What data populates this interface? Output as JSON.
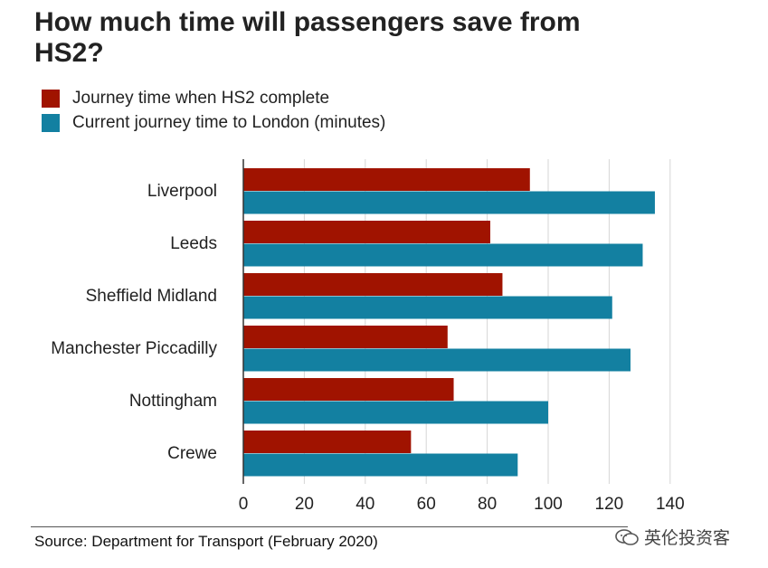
{
  "title": "How much time will passengers save from HS2?",
  "source": "Source: Department for Transport (February 2020)",
  "watermark": "英伦投资客",
  "chart_data": {
    "type": "bar",
    "orientation": "horizontal",
    "categories": [
      "Liverpool",
      "Leeds",
      "Sheffield Midland",
      "Manchester Piccadilly",
      "Nottingham",
      "Crewe"
    ],
    "series": [
      {
        "name": "Journey time when HS2 complete",
        "color": "#a01300",
        "values": [
          94,
          81,
          85,
          67,
          69,
          55
        ]
      },
      {
        "name": "Current journey time to London (minutes)",
        "color": "#1380a1",
        "values": [
          135,
          131,
          121,
          127,
          100,
          90
        ]
      }
    ],
    "xlim": [
      0,
      140
    ],
    "xticks": [
      0,
      20,
      40,
      60,
      80,
      100,
      120,
      140
    ],
    "grid": "vertical",
    "legend": "top-left",
    "xlabel": "",
    "ylabel": ""
  }
}
